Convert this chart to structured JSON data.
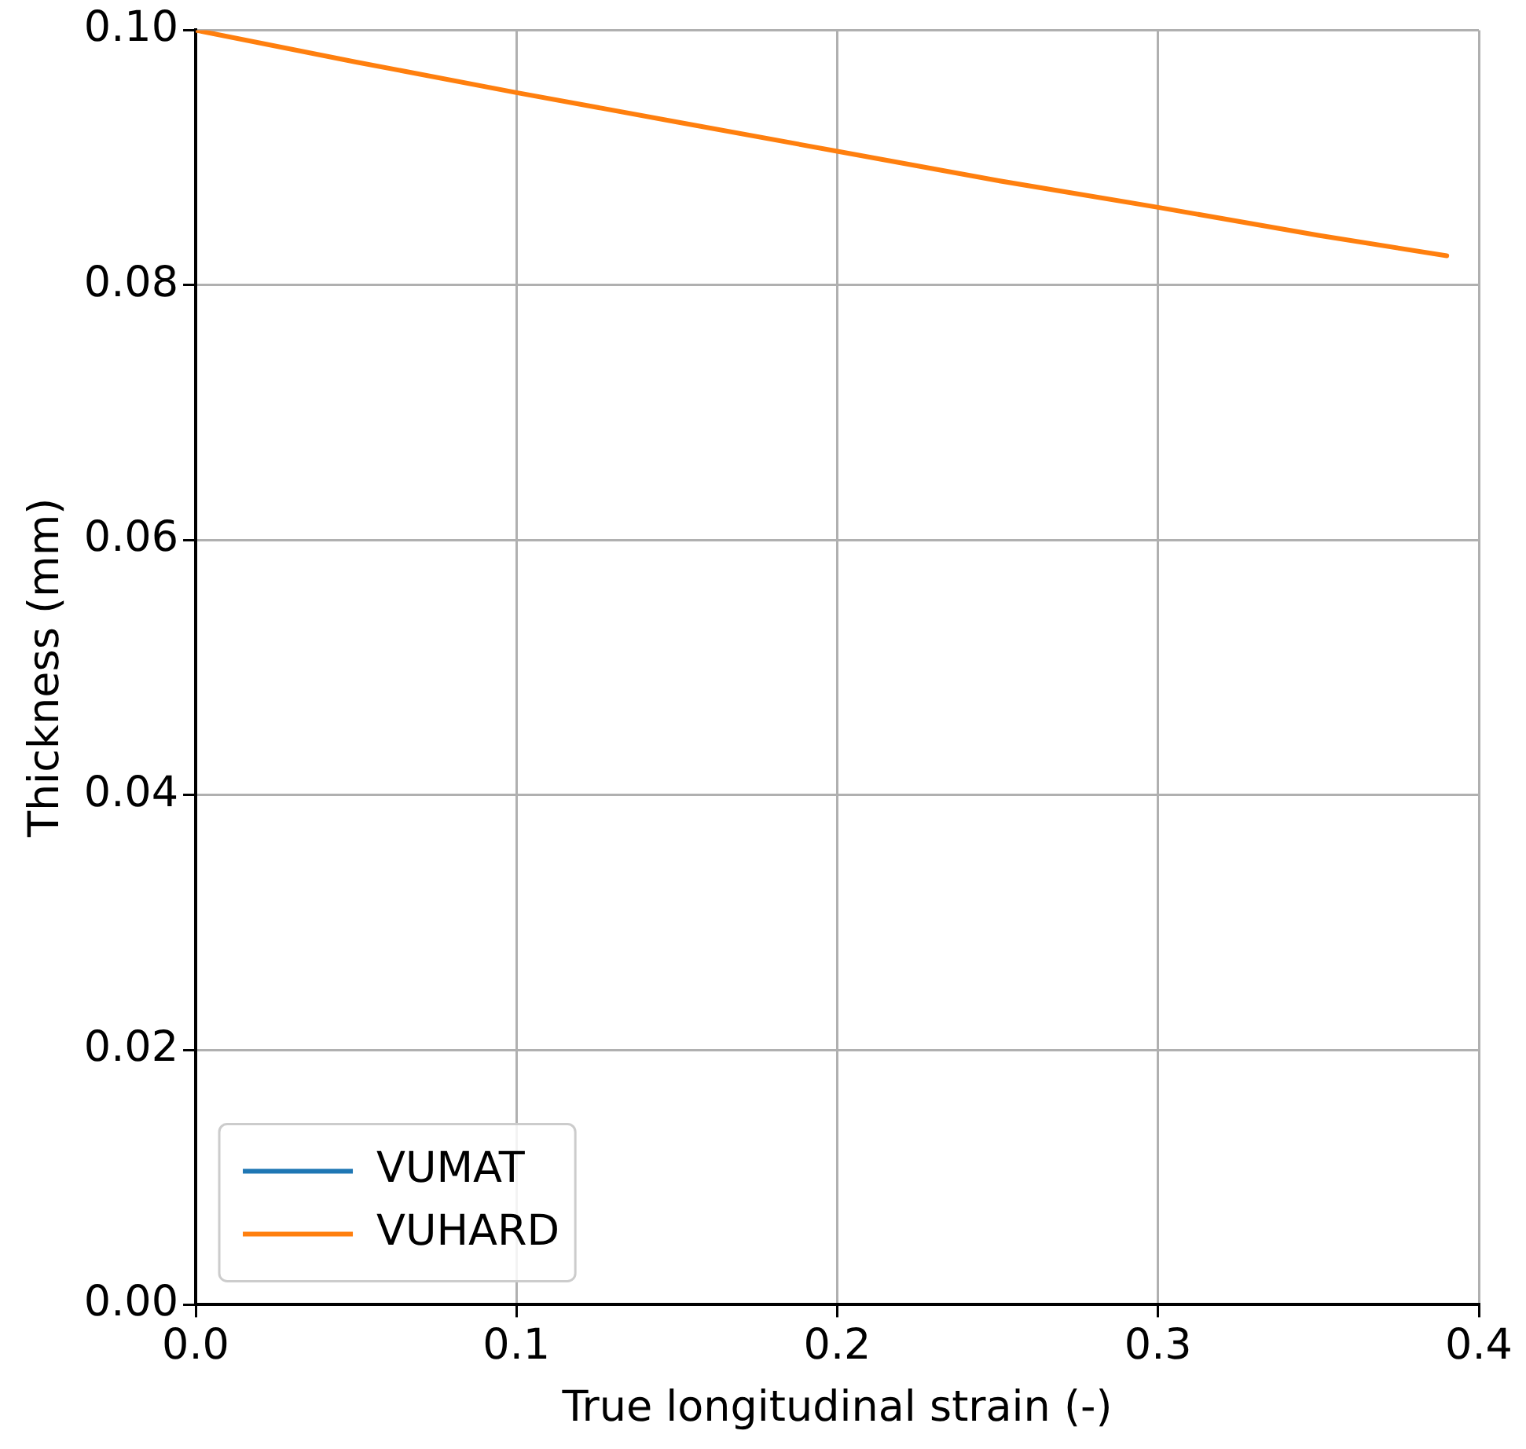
{
  "chart_data": {
    "type": "line",
    "xlabel": "True longitudinal strain (-)",
    "ylabel": "Thickness (mm)",
    "x": [
      0,
      0.05,
      0.1,
      0.15,
      0.2,
      0.25,
      0.3,
      0.35,
      0.39
    ],
    "series": [
      {
        "name": "VUMAT",
        "color": "#1f77b4",
        "values": [
          null,
          null,
          null,
          null,
          null,
          null,
          null,
          null,
          null
        ]
      },
      {
        "name": "VUHARD",
        "color": "#ff7f0e",
        "values": [
          0.1,
          0.0975,
          0.0951,
          0.0928,
          0.0905,
          0.0882,
          0.0861,
          0.0839,
          0.0823
        ]
      }
    ],
    "xlim": [
      0,
      0.4
    ],
    "xticks": [
      {
        "value": 0,
        "label": "0.0"
      },
      {
        "value": 0.1,
        "label": "0.1"
      },
      {
        "value": 0.2,
        "label": "0.2"
      },
      {
        "value": 0.3,
        "label": "0.3"
      },
      {
        "value": 0.4,
        "label": "0.4"
      }
    ],
    "ylim": [
      0,
      0.1
    ],
    "yticks": [
      {
        "value": 0,
        "label": "0.00"
      },
      {
        "value": 0.02,
        "label": "0.02"
      },
      {
        "value": 0.04,
        "label": "0.04"
      },
      {
        "value": 0.06,
        "label": "0.06"
      },
      {
        "value": 0.08,
        "label": "0.08"
      },
      {
        "value": 0.1,
        "label": "0.10"
      }
    ],
    "grid": true,
    "legend": "bottom left",
    "marker": "none",
    "line_style": "solid"
  }
}
